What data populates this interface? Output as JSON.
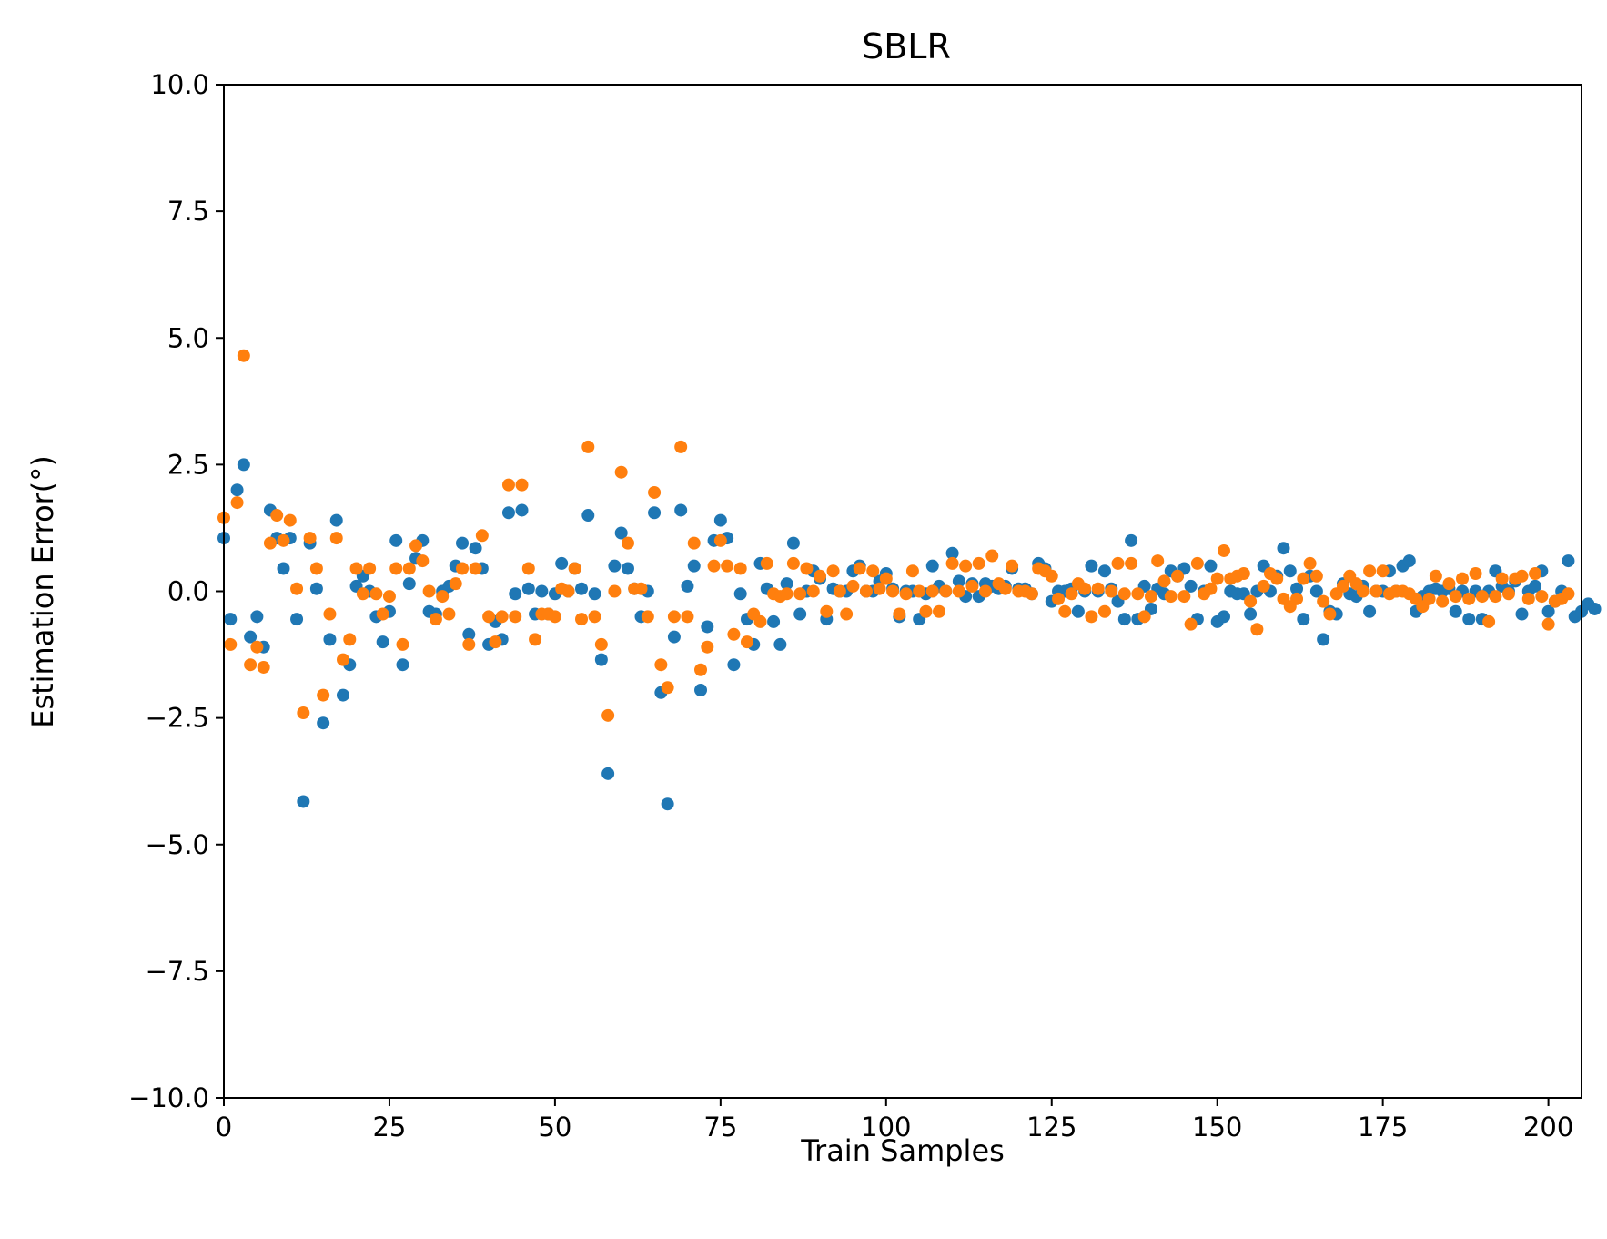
{
  "chart_data": {
    "type": "scatter",
    "title": "SBLR",
    "xlabel": "Train Samples",
    "ylabel": "Estimation Error(°)",
    "xlim": [
      0,
      205
    ],
    "ylim": [
      -10,
      10
    ],
    "xticks": [
      0,
      25,
      50,
      75,
      100,
      125,
      150,
      175,
      200
    ],
    "xtick_labels": [
      "0",
      "25",
      "50",
      "75",
      "100",
      "125",
      "150",
      "175",
      "200"
    ],
    "yticks": [
      -10,
      -7.5,
      -5,
      -2.5,
      0,
      2.5,
      5,
      7.5,
      10
    ],
    "ytick_labels": [
      "−10.0",
      "−7.5",
      "−5.0",
      "−2.5",
      "0.0",
      "2.5",
      "5.0",
      "7.5",
      "10.0"
    ],
    "grid": false,
    "colors": [
      "#1f77b4",
      "#ff7f0e"
    ],
    "series": [
      {
        "values": [
          1.05,
          -0.55,
          2.0,
          2.5,
          -0.9,
          -0.5,
          -1.1,
          1.6,
          1.05,
          0.45,
          1.05,
          -0.55,
          -4.15,
          0.95,
          0.05,
          -2.6,
          -0.95,
          1.4,
          -2.05,
          -1.45,
          0.1,
          0.3,
          0.0,
          -0.5,
          -1.0,
          -0.4,
          1.0,
          -1.45,
          0.15,
          0.65,
          1.0,
          -0.4,
          -0.45,
          0.0,
          0.1,
          0.5,
          0.95,
          -0.85,
          0.85,
          0.45,
          -1.05,
          -0.6,
          -0.95,
          1.55,
          -0.05,
          1.6,
          0.05,
          -0.45,
          0.0,
          -0.45,
          -0.05,
          0.55,
          0.0,
          0.45,
          0.05,
          1.5,
          -0.05,
          -1.35,
          -3.6,
          0.5,
          1.15,
          0.45,
          0.05,
          -0.5,
          0.0,
          1.55,
          -2.0,
          -4.2,
          -0.9,
          1.6,
          0.1,
          0.5,
          -1.95,
          -0.7,
          1.0,
          1.4,
          1.05,
          -1.45,
          -0.05,
          -0.55,
          -1.05,
          0.55,
          0.05,
          -0.6,
          -1.05,
          0.15,
          0.95,
          -0.45,
          0.0,
          0.4,
          0.25,
          -0.55,
          0.05,
          0.0,
          0.0,
          0.4,
          0.5,
          0.0,
          0.0,
          0.2,
          0.35,
          0.05,
          -0.5,
          0.0,
          0.0,
          -0.55,
          -0.05,
          0.5,
          0.1,
          0.0,
          0.75,
          0.2,
          -0.1,
          0.15,
          -0.1,
          0.15,
          0.1,
          0.05,
          0.1,
          0.45,
          0.05,
          0.05,
          -0.05,
          0.55,
          0.45,
          -0.2,
          0.0,
          0.0,
          0.05,
          -0.4,
          0.0,
          0.5,
          0.0,
          0.4,
          0.05,
          -0.2,
          -0.55,
          1.0,
          -0.55,
          0.1,
          -0.35,
          0.05,
          -0.05,
          0.4,
          0.3,
          0.45,
          0.1,
          -0.55,
          0.0,
          0.5,
          -0.6,
          -0.5,
          0.0,
          -0.05,
          -0.05,
          -0.45,
          0.0,
          0.5,
          0.0,
          0.3,
          0.85,
          0.4,
          0.05,
          -0.55,
          0.3,
          0.0,
          -0.95,
          -0.4,
          -0.45,
          0.15,
          -0.05,
          -0.1,
          0.1,
          -0.4,
          0.0,
          0.0,
          0.4,
          0.0,
          0.5,
          0.6,
          -0.4,
          -0.1,
          0.0,
          0.05,
          0.0,
          0.05,
          -0.4,
          0.0,
          -0.55,
          0.0,
          -0.55,
          0.0,
          0.4,
          0.1,
          0.0,
          0.2,
          -0.45,
          0.0,
          0.1,
          0.4,
          -0.4,
          -0.2,
          0.0,
          0.6,
          -0.5,
          -0.4,
          -0.25,
          -0.35
        ]
      },
      {
        "values": [
          1.45,
          -1.05,
          1.75,
          4.65,
          -1.45,
          -1.1,
          -1.5,
          0.95,
          1.5,
          1.0,
          1.4,
          0.05,
          -2.4,
          1.05,
          0.45,
          -2.05,
          -0.45,
          1.05,
          -1.35,
          -0.95,
          0.45,
          -0.05,
          0.45,
          -0.05,
          -0.45,
          -0.1,
          0.45,
          -1.05,
          0.45,
          0.9,
          0.6,
          0.0,
          -0.55,
          -0.1,
          -0.45,
          0.15,
          0.45,
          -1.05,
          0.45,
          1.1,
          -0.5,
          -1.0,
          -0.5,
          2.1,
          -0.5,
          2.1,
          0.45,
          -0.95,
          -0.45,
          -0.45,
          -0.5,
          0.05,
          0.0,
          0.45,
          -0.55,
          2.85,
          -0.5,
          -1.05,
          -2.45,
          0.0,
          2.35,
          0.95,
          0.05,
          0.05,
          -0.5,
          1.95,
          -1.45,
          -1.9,
          -0.5,
          2.85,
          -0.5,
          0.95,
          -1.55,
          -1.1,
          0.5,
          1.0,
          0.5,
          -0.85,
          0.45,
          -1.0,
          -0.45,
          -0.6,
          0.55,
          -0.05,
          -0.1,
          -0.05,
          0.55,
          -0.05,
          0.45,
          0.0,
          0.3,
          -0.4,
          0.4,
          0.0,
          -0.45,
          0.1,
          0.45,
          0.0,
          0.4,
          0.05,
          0.25,
          0.0,
          -0.45,
          -0.05,
          0.4,
          0.0,
          -0.4,
          0.0,
          -0.4,
          0.0,
          0.55,
          0.0,
          0.5,
          0.1,
          0.55,
          0.0,
          0.7,
          0.15,
          0.05,
          0.5,
          0.0,
          0.0,
          -0.05,
          0.45,
          0.4,
          0.3,
          -0.15,
          -0.4,
          -0.05,
          0.15,
          0.05,
          -0.5,
          0.05,
          -0.4,
          0.0,
          0.55,
          -0.05,
          0.55,
          -0.05,
          -0.5,
          -0.1,
          0.6,
          0.2,
          -0.1,
          0.3,
          -0.1,
          -0.65,
          0.55,
          -0.05,
          0.05,
          0.25,
          0.8,
          0.25,
          0.3,
          0.35,
          -0.2,
          -0.75,
          0.1,
          0.35,
          0.25,
          -0.15,
          -0.3,
          -0.15,
          0.25,
          0.55,
          0.3,
          -0.2,
          -0.45,
          -0.05,
          0.1,
          0.3,
          0.15,
          0.0,
          0.4,
          0.0,
          0.4,
          -0.05,
          0.0,
          0.0,
          -0.05,
          -0.15,
          -0.3,
          -0.15,
          0.3,
          -0.2,
          0.15,
          -0.1,
          0.25,
          -0.15,
          0.35,
          -0.1,
          -0.6,
          -0.1,
          0.25,
          -0.05,
          0.25,
          0.3,
          -0.15,
          0.35,
          -0.1,
          -0.65,
          -0.2,
          -0.15,
          -0.05
        ]
      }
    ]
  }
}
